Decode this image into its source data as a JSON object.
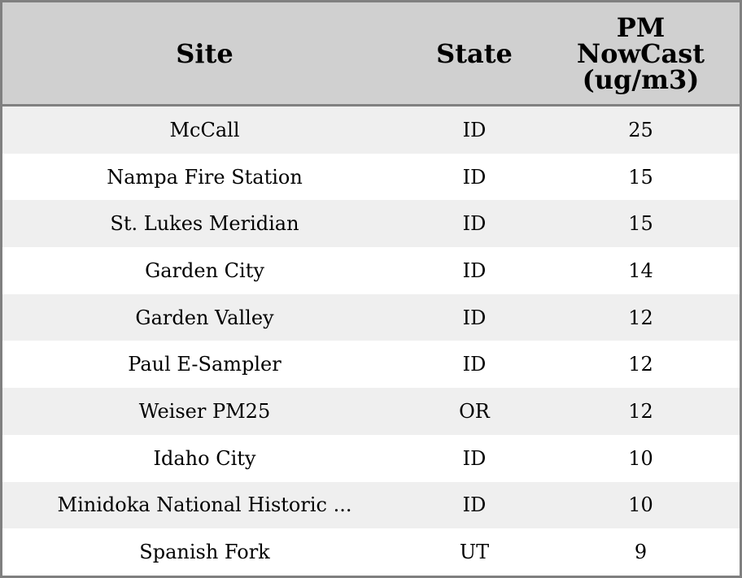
{
  "table": {
    "headers": {
      "site": "Site",
      "state": "State",
      "pm": "PM NowCast (ug/m3)"
    },
    "rows": [
      {
        "site": "McCall",
        "state": "ID",
        "pm": "25"
      },
      {
        "site": "Nampa Fire Station",
        "state": "ID",
        "pm": "15"
      },
      {
        "site": "St. Lukes Meridian",
        "state": "ID",
        "pm": "15"
      },
      {
        "site": "Garden City",
        "state": "ID",
        "pm": "14"
      },
      {
        "site": "Garden Valley",
        "state": "ID",
        "pm": "12"
      },
      {
        "site": "Paul E-Sampler",
        "state": "ID",
        "pm": "12"
      },
      {
        "site": "Weiser PM25",
        "state": "OR",
        "pm": "12"
      },
      {
        "site": "Idaho City",
        "state": "ID",
        "pm": "10"
      },
      {
        "site": "Minidoka National Historic ...",
        "state": "ID",
        "pm": "10"
      },
      {
        "site": "Spanish Fork",
        "state": "UT",
        "pm": "9"
      }
    ]
  },
  "colors": {
    "header_bg": "#d0d0d0",
    "stripe": "#efefef",
    "border": "#808080"
  }
}
